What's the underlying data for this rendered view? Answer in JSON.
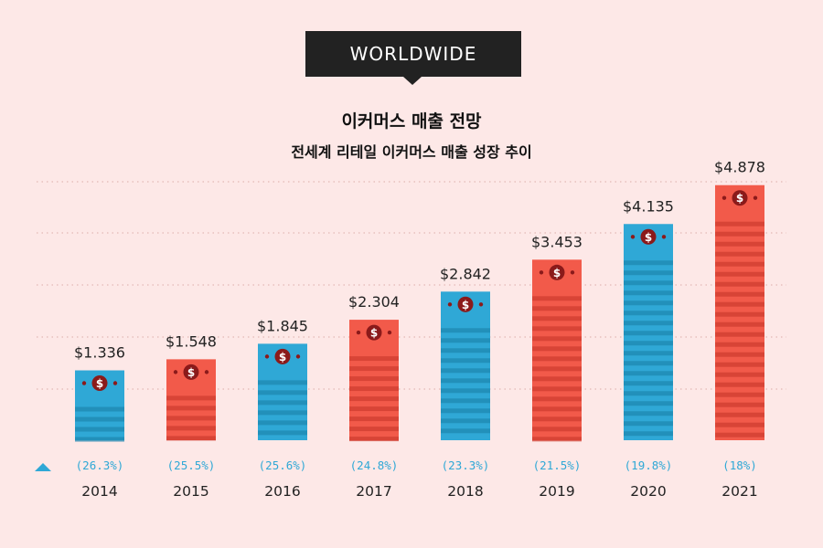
{
  "header": {
    "badge_label": "WORLDWIDE",
    "title": "이커머스 매출 전망",
    "subtitle": "전세계 리테일 이커머스 매출 성장 추이"
  },
  "colors": {
    "background": "#fde8e7",
    "blue": "#2fa8d6",
    "blue_stripe": "#1f88b0",
    "red": "#f25a4a",
    "red_stripe": "#cf3d30",
    "growth_text": "#2fa8d6",
    "coin": "#8b1a1a"
  },
  "icons": {
    "bar_icon": "dollar-coin-icon",
    "growth_indicator": "up-triangle-icon"
  },
  "chart_data": {
    "type": "bar",
    "title": "이커머스 매출 전망",
    "subtitle": "전세계 리테일 이커머스 매출 성장 추이",
    "categories": [
      "2014",
      "2015",
      "2016",
      "2017",
      "2018",
      "2019",
      "2020",
      "2021"
    ],
    "values": [
      1.336,
      1.548,
      1.845,
      2.304,
      2.842,
      3.453,
      4.135,
      4.878
    ],
    "value_labels": [
      "$1.336",
      "$1.548",
      "$1.845",
      "$2.304",
      "$2.842",
      "$3.453",
      "$4.135",
      "$4.878"
    ],
    "growth_labels": [
      "(26.3%)",
      "(25.5%)",
      "(25.6%)",
      "(24.8%)",
      "(23.3%)",
      "(21.5%)",
      "(19.8%)",
      "(18%)"
    ],
    "bar_colors": [
      "blue",
      "red",
      "blue",
      "red",
      "blue",
      "red",
      "blue",
      "red"
    ],
    "ylim": [
      0,
      5.24
    ],
    "grid": true
  }
}
